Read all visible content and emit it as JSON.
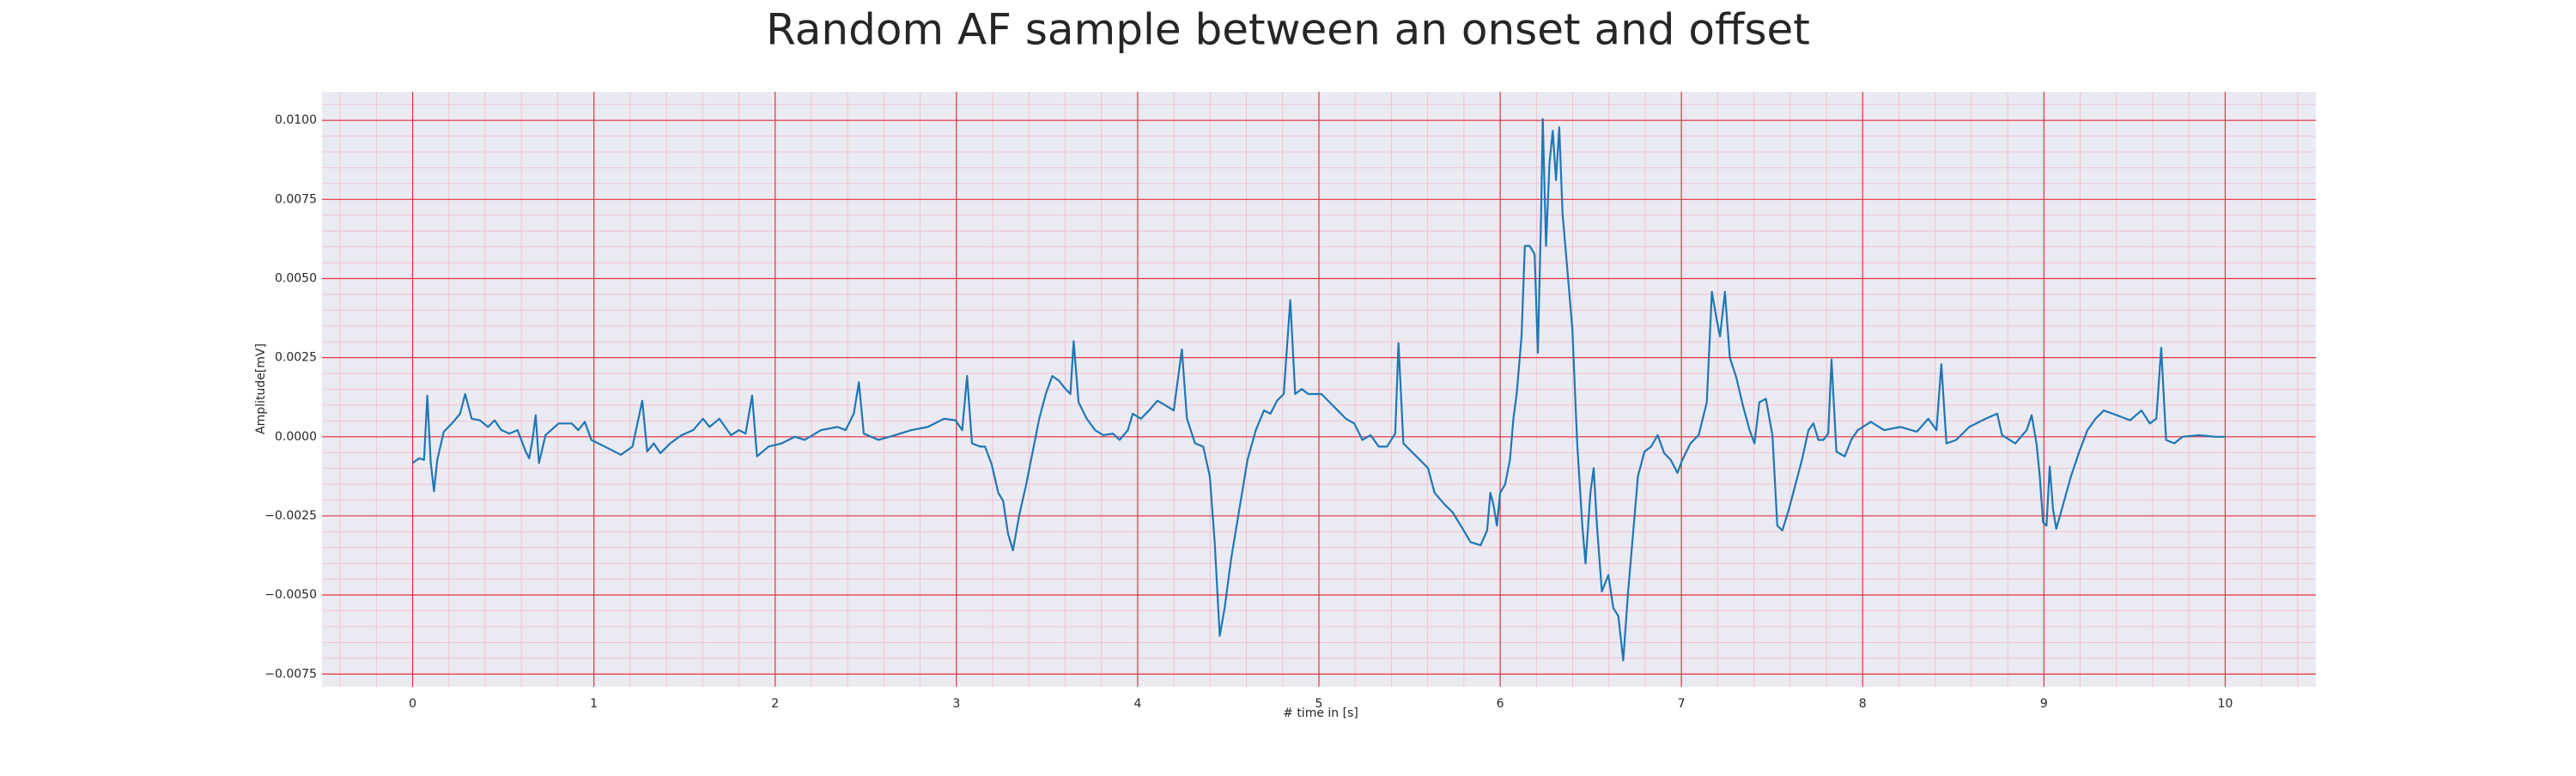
{
  "chart_data": {
    "type": "line",
    "title": "Random AF sample between an onset and offset",
    "xlabel": "# time in [s]",
    "ylabel": "Amplitude[mV]",
    "color": "#1f77b4",
    "grid": true,
    "xlim": [
      -0.5,
      10.5
    ],
    "ylim": [
      -0.0079,
      0.0109
    ],
    "xticks": [
      0,
      1,
      2,
      3,
      4,
      5,
      6,
      7,
      8,
      9,
      10
    ],
    "yticks": [
      {
        "value": -0.0075,
        "label": "−0.0075"
      },
      {
        "value": -0.005,
        "label": "−0.0050"
      },
      {
        "value": -0.0025,
        "label": "−0.0025"
      },
      {
        "value": 0,
        "label": "0.0000"
      },
      {
        "value": 0.0025,
        "label": "0.0025"
      },
      {
        "value": 0.005,
        "label": "0.0050"
      },
      {
        "value": 0.0075,
        "label": "0.0075"
      },
      {
        "value": 0.01,
        "label": "0.0100"
      }
    ],
    "x": [
      0,
      0.036,
      0.063,
      0.081,
      0.1,
      0.118,
      0.136,
      0.172,
      0.217,
      0.262,
      0.29,
      0.326,
      0.371,
      0.416,
      0.452,
      0.489,
      0.534,
      0.579,
      0.624,
      0.643,
      0.661,
      0.679,
      0.697,
      0.733,
      0.805,
      0.878,
      0.914,
      0.95,
      0.986,
      1.077,
      1.149,
      1.213,
      1.267,
      1.294,
      1.33,
      1.367,
      1.421,
      1.484,
      1.548,
      1.602,
      1.638,
      1.692,
      1.756,
      1.801,
      1.837,
      1.873,
      1.9,
      1.964,
      2.036,
      2.109,
      2.163,
      2.253,
      2.344,
      2.389,
      2.434,
      2.462,
      2.489,
      2.57,
      2.661,
      2.751,
      2.842,
      2.932,
      2.995,
      3.032,
      3.059,
      3.086,
      3.131,
      3.158,
      3.195,
      3.231,
      3.258,
      3.285,
      3.312,
      3.348,
      3.385,
      3.421,
      3.457,
      3.493,
      3.529,
      3.566,
      3.602,
      3.629,
      3.647,
      3.674,
      3.719,
      3.765,
      3.81,
      3.864,
      3.9,
      3.946,
      3.973,
      4.018,
      4.063,
      4.109,
      4.154,
      4.199,
      4.244,
      4.272,
      4.317,
      4.362,
      4.398,
      4.425,
      4.453,
      4.48,
      4.516,
      4.561,
      4.606,
      4.652,
      4.697,
      4.733,
      4.769,
      4.806,
      4.842,
      4.869,
      4.905,
      4.941,
      4.978,
      5.014,
      5.059,
      5.104,
      5.149,
      5.195,
      5.24,
      5.285,
      5.33,
      5.376,
      5.421,
      5.439,
      5.466,
      5.511,
      5.557,
      5.602,
      5.638,
      5.692,
      5.738,
      5.783,
      5.837,
      5.892,
      5.928,
      5.946,
      5.964,
      5.982,
      6.0,
      6.027,
      6.054,
      6.073,
      6.091,
      6.118,
      6.136,
      6.163,
      6.19,
      6.208,
      6.226,
      6.235,
      6.253,
      6.272,
      6.29,
      6.308,
      6.326,
      6.344,
      6.371,
      6.398,
      6.425,
      6.453,
      6.471,
      6.498,
      6.516,
      6.534,
      6.561,
      6.597,
      6.624,
      6.652,
      6.679,
      6.706,
      6.733,
      6.76,
      6.796,
      6.833,
      6.869,
      6.905,
      6.941,
      6.978,
      7.005,
      7.05,
      7.095,
      7.14,
      7.168,
      7.195,
      7.213,
      7.24,
      7.267,
      7.303,
      7.339,
      7.376,
      7.403,
      7.43,
      7.466,
      7.502,
      7.529,
      7.557,
      7.593,
      7.629,
      7.665,
      7.701,
      7.728,
      7.756,
      7.783,
      7.81,
      7.828,
      7.855,
      7.901,
      7.937,
      7.973,
      8.045,
      8.118,
      8.208,
      8.299,
      8.362,
      8.407,
      8.434,
      8.462,
      8.516,
      8.588,
      8.679,
      8.742,
      8.769,
      8.842,
      8.905,
      8.932,
      8.959,
      8.977,
      8.995,
      9.014,
      9.032,
      9.05,
      9.068,
      9.104,
      9.149,
      9.195,
      9.24,
      9.285,
      9.33,
      9.403,
      9.475,
      9.538,
      9.584,
      9.62,
      9.647,
      9.674,
      9.719,
      9.765,
      9.855,
      9.946,
      10.0
    ],
    "values": [
      -0.00083,
      -0.00068,
      -0.00073,
      0.0013,
      -0.00083,
      -0.00172,
      -0.00073,
      0.00016,
      0.00042,
      0.00073,
      0.00135,
      0.00057,
      0.00052,
      0.00031,
      0.00052,
      0.00021,
      0.0001,
      0.00021,
      -0.00047,
      -0.00068,
      -0.0001,
      0.00068,
      -0.00083,
      5e-05,
      0.00042,
      0.00042,
      0.00021,
      0.00047,
      -0.0001,
      -0.00036,
      -0.00057,
      -0.00031,
      0.00114,
      -0.00047,
      -0.00021,
      -0.00052,
      -0.00021,
      5e-05,
      0.00021,
      0.00057,
      0.00031,
      0.00057,
      5e-05,
      0.00021,
      0.0001,
      0.0013,
      -0.00062,
      -0.00031,
      -0.00021,
      0,
      -0.0001,
      0.00021,
      0.00031,
      0.00021,
      0.00073,
      0.00172,
      0.0001,
      -0.0001,
      5e-05,
      0.00021,
      0.00031,
      0.00057,
      0.00052,
      0.00021,
      0.00192,
      -0.00021,
      -0.00031,
      -0.00031,
      -0.00088,
      -0.00177,
      -0.00203,
      -0.00307,
      -0.00359,
      -0.00244,
      -0.00151,
      -0.00047,
      0.00057,
      0.00135,
      0.00192,
      0.00177,
      0.00151,
      0.00135,
      0.00302,
      0.00109,
      0.00057,
      0.00021,
      5e-05,
      0.0001,
      -0.0001,
      0.00021,
      0.00073,
      0.00057,
      0.00083,
      0.00114,
      0.00099,
      0.00083,
      0.00276,
      0.00057,
      -0.00021,
      -0.00031,
      -0.00125,
      -0.00333,
      -0.00629,
      -0.00541,
      -0.00385,
      -0.00229,
      -0.00073,
      0.00021,
      0.00083,
      0.00073,
      0.00114,
      0.00135,
      0.00432,
      0.00135,
      0.00151,
      0.00135,
      0.00135,
      0.00135,
      0.00109,
      0.00083,
      0.00057,
      0.00042,
      -0.0001,
      5e-05,
      -0.00031,
      -0.00031,
      0.0001,
      0.00296,
      -0.00021,
      -0.00047,
      -0.00073,
      -0.00099,
      -0.00177,
      -0.00213,
      -0.00239,
      -0.00281,
      -0.00333,
      -0.00343,
      -0.00296,
      -0.00177,
      -0.00218,
      -0.00281,
      -0.00177,
      -0.00151,
      -0.00073,
      0.00057,
      0.00135,
      0.00317,
      0.00603,
      0.00603,
      0.00577,
      0.00265,
      0.00707,
      0.01004,
      0.00603,
      0.00863,
      0.00967,
      0.00811,
      0.00978,
      0.00707,
      0.00525,
      0.00343,
      -0.00021,
      -0.00281,
      -0.004,
      -0.00177,
      -0.00099,
      -0.00281,
      -0.00489,
      -0.00437,
      -0.00541,
      -0.00567,
      -0.00707,
      -0.00489,
      -0.00307,
      -0.00125,
      -0.00047,
      -0.00031,
      5e-05,
      -0.00052,
      -0.00073,
      -0.00114,
      -0.00073,
      -0.00021,
      5e-05,
      0.00109,
      0.00458,
      0.00369,
      0.00317,
      0.00458,
      0.0025,
      0.00187,
      0.00099,
      0.00021,
      -0.00021,
      0.00109,
      0.0012,
      5e-05,
      -0.00281,
      -0.00296,
      -0.00229,
      -0.00151,
      -0.00073,
      0.00021,
      0.00042,
      -0.0001,
      -0.0001,
      0.0001,
      0.00244,
      -0.00047,
      -0.00062,
      -0.0001,
      0.00021,
      0.00047,
      0.00021,
      0.00031,
      0.00016,
      0.00057,
      0.00021,
      0.00229,
      -0.00021,
      -0.0001,
      0.00031,
      0.00057,
      0.00073,
      5e-05,
      -0.00021,
      0.00021,
      0.00068,
      -0.00021,
      -0.00125,
      -0.0027,
      -0.00281,
      -0.00094,
      -0.00229,
      -0.00291,
      -0.00218,
      -0.00125,
      -0.00047,
      0.00021,
      0.00057,
      0.00083,
      0.00068,
      0.00052,
      0.00083,
      0.00042,
      0.00057,
      0.00281,
      -0.0001,
      -0.00021,
      0,
      5e-05,
      0,
      0
    ]
  }
}
